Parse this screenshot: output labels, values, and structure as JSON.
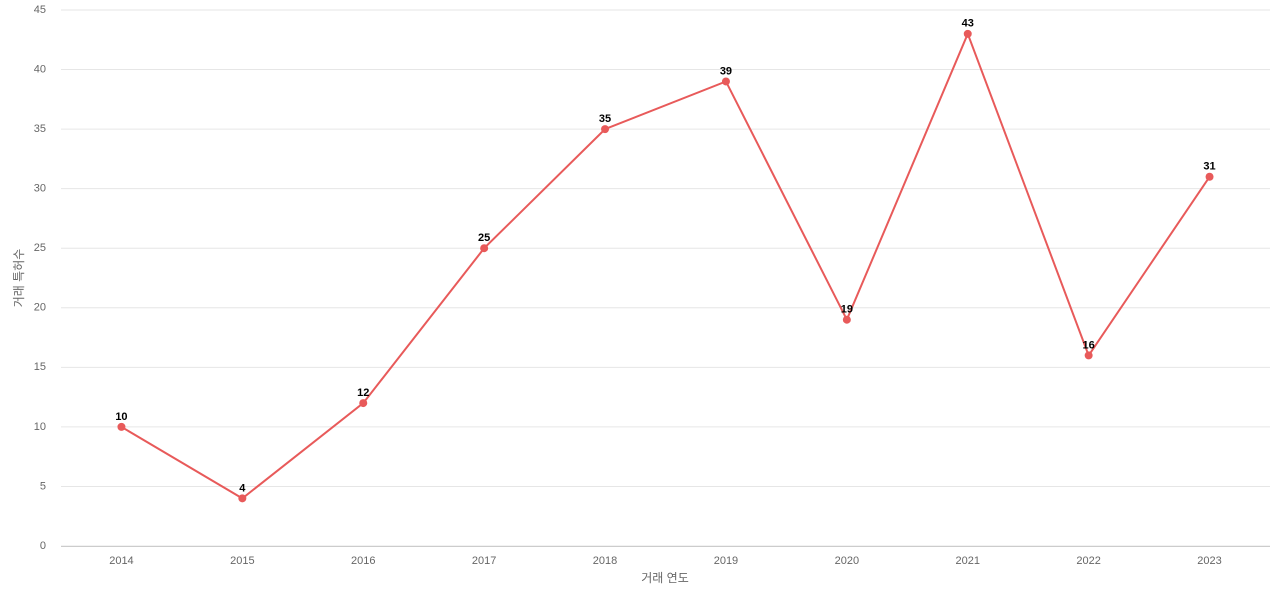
{
  "chart_data": {
    "type": "line",
    "x_label": "거래 연도",
    "y_label": "거래 특허수",
    "categories": [
      "2014",
      "2015",
      "2016",
      "2017",
      "2018",
      "2019",
      "2020",
      "2021",
      "2022",
      "2023"
    ],
    "series": [
      {
        "name": "거래 특허수",
        "color": "#e85a5a",
        "values": [
          10,
          4,
          12,
          25,
          35,
          39,
          19,
          43,
          16,
          31
        ]
      }
    ],
    "ylim": [
      0,
      45
    ],
    "yticks": [
      0,
      5,
      10,
      15,
      20,
      25,
      30,
      35,
      40,
      45
    ],
    "grid": true
  }
}
